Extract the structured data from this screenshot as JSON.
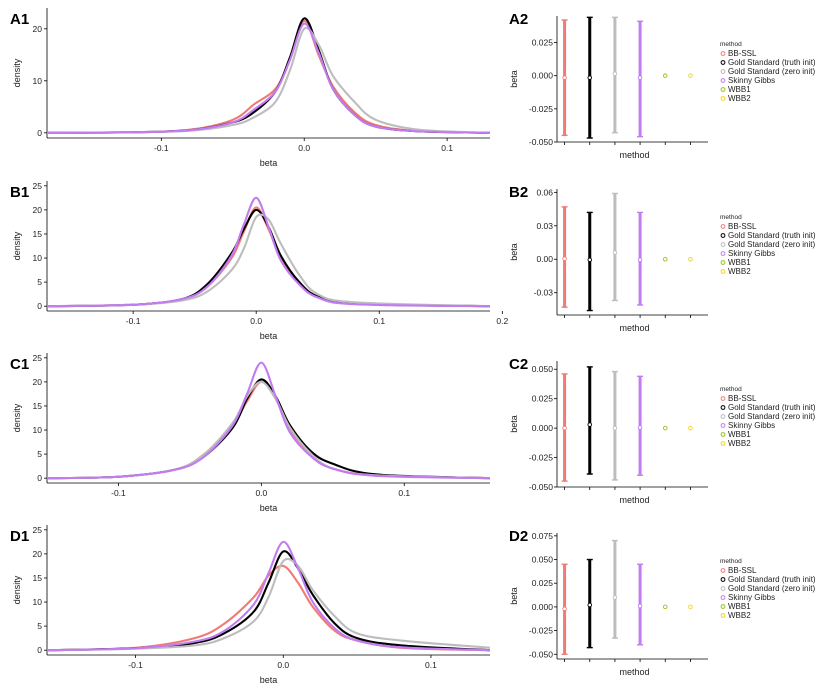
{
  "colors": {
    "BB-SSL": "#f07b74",
    "Gold Standard (truth init)": "#000000",
    "Gold Standard (zero init)": "#bdbdbd",
    "Skinny Gibbs": "#c27cf2",
    "WBB1": "#9bbf1f",
    "WBB2": "#f7d21c"
  },
  "legend": {
    "title": "method",
    "entries": [
      "BB-SSL",
      "Gold Standard (truth init)",
      "Gold Standard (zero init)",
      "Skinny Gibbs",
      "WBB1",
      "WBB2"
    ]
  },
  "chart_data": [
    {
      "label": "A1",
      "type": "line",
      "xlabel": "beta",
      "ylabel": "density",
      "xlim": [
        -0.18,
        0.13
      ],
      "ylim": [
        -1,
        24
      ],
      "xticks": [
        -0.1,
        0.0,
        0.1
      ],
      "xtick_labels": [
        "-0.1",
        "0.0",
        "0.1"
      ],
      "yticks": [
        0,
        10,
        20
      ],
      "ytick_labels": [
        "0",
        "10",
        "20"
      ],
      "series": [
        {
          "name": "BB-SSL",
          "x": [
            -0.18,
            -0.12,
            -0.08,
            -0.05,
            -0.035,
            -0.02,
            -0.01,
            0.0,
            0.01,
            0.02,
            0.035,
            0.05,
            0.08,
            0.13
          ],
          "y": [
            0,
            0.1,
            0.6,
            2.5,
            5.5,
            8.5,
            14.0,
            21.5,
            15.0,
            9.0,
            4.0,
            1.5,
            0.3,
            0
          ]
        },
        {
          "name": "Gold Standard (truth init)",
          "x": [
            -0.18,
            -0.12,
            -0.08,
            -0.05,
            -0.035,
            -0.02,
            -0.01,
            0.0,
            0.01,
            0.02,
            0.035,
            0.05,
            0.08,
            0.13
          ],
          "y": [
            0,
            0.1,
            0.5,
            2.0,
            4.0,
            8.0,
            14.5,
            22.0,
            16.0,
            8.5,
            3.5,
            1.2,
            0.3,
            0
          ]
        },
        {
          "name": "Gold Standard (zero init)",
          "x": [
            -0.18,
            -0.12,
            -0.08,
            -0.05,
            -0.035,
            -0.02,
            -0.01,
            0.0,
            0.01,
            0.02,
            0.035,
            0.05,
            0.08,
            0.13
          ],
          "y": [
            0,
            0.1,
            0.4,
            1.5,
            3.0,
            6.0,
            12.0,
            20.0,
            17.0,
            11.0,
            6.0,
            2.5,
            0.6,
            0
          ]
        },
        {
          "name": "Skinny Gibbs",
          "x": [
            -0.18,
            -0.12,
            -0.08,
            -0.05,
            -0.035,
            -0.02,
            -0.01,
            0.0,
            0.01,
            0.02,
            0.035,
            0.05,
            0.08,
            0.13
          ],
          "y": [
            0,
            0.1,
            0.5,
            2.0,
            4.5,
            8.0,
            14.0,
            21.0,
            15.5,
            8.5,
            3.5,
            1.2,
            0.3,
            0
          ]
        }
      ]
    },
    {
      "label": "A2",
      "type": "errorbar",
      "xlabel": "method",
      "ylabel": "beta",
      "ylim": [
        -0.05,
        0.045
      ],
      "yticks": [
        -0.05,
        -0.025,
        0.0,
        0.025
      ],
      "ytick_labels": [
        "-0.050",
        "-0.025",
        "0.000",
        "0.025"
      ],
      "categories": [
        "BB-SSL",
        "Gold Standard (truth init)",
        "Gold Standard (zero init)",
        "Skinny Gibbs",
        "WBB1",
        "WBB2"
      ],
      "mean": [
        -0.0015,
        -0.0015,
        0.0015,
        -0.0015,
        0.0,
        0.0
      ],
      "lower": [
        -0.045,
        -0.047,
        -0.043,
        -0.046,
        0.0,
        0.0
      ],
      "upper": [
        0.042,
        0.044,
        0.044,
        0.041,
        0.0,
        0.0
      ]
    },
    {
      "label": "B1",
      "type": "line",
      "xlabel": "beta",
      "ylabel": "density",
      "xlim": [
        -0.17,
        0.19
      ],
      "ylim": [
        -1,
        26
      ],
      "xticks": [
        -0.1,
        0.0,
        0.1,
        0.2
      ],
      "xtick_labels": [
        "-0.1",
        "0.0",
        "0.1",
        "0.2"
      ],
      "yticks": [
        0,
        5,
        10,
        15,
        20,
        25
      ],
      "ytick_labels": [
        "0",
        "5",
        "10",
        "15",
        "20",
        "25"
      ],
      "series": [
        {
          "name": "BB-SSL",
          "x": [
            -0.17,
            -0.1,
            -0.06,
            -0.04,
            -0.02,
            -0.01,
            0.0,
            0.01,
            0.02,
            0.035,
            0.05,
            0.08,
            0.19
          ],
          "y": [
            0,
            0.3,
            1.5,
            4.0,
            10.0,
            15.5,
            20.5,
            16.0,
            10.0,
            5.0,
            2.0,
            0.5,
            0
          ]
        },
        {
          "name": "Gold Standard (truth init)",
          "x": [
            -0.17,
            -0.1,
            -0.06,
            -0.04,
            -0.02,
            -0.01,
            0.0,
            0.01,
            0.02,
            0.035,
            0.05,
            0.08,
            0.19
          ],
          "y": [
            0,
            0.3,
            1.5,
            4.5,
            11.0,
            16.0,
            20.0,
            16.5,
            10.5,
            5.0,
            2.0,
            0.5,
            0
          ]
        },
        {
          "name": "Gold Standard (zero init)",
          "x": [
            -0.17,
            -0.1,
            -0.06,
            -0.04,
            -0.02,
            -0.01,
            0.0,
            0.01,
            0.02,
            0.035,
            0.05,
            0.08,
            0.19
          ],
          "y": [
            0,
            0.3,
            1.2,
            3.0,
            7.5,
            12.0,
            18.5,
            18.0,
            13.0,
            6.5,
            2.5,
            0.8,
            0
          ]
        },
        {
          "name": "Skinny Gibbs",
          "x": [
            -0.17,
            -0.1,
            -0.06,
            -0.04,
            -0.02,
            -0.01,
            0.0,
            0.01,
            0.02,
            0.035,
            0.05,
            0.08,
            0.19
          ],
          "y": [
            0,
            0.3,
            1.5,
            4.0,
            10.5,
            17.0,
            22.5,
            16.5,
            9.5,
            4.5,
            1.8,
            0.4,
            0
          ]
        }
      ]
    },
    {
      "label": "B2",
      "type": "errorbar",
      "xlabel": "method",
      "ylabel": "beta",
      "ylim": [
        -0.05,
        0.063
      ],
      "yticks": [
        -0.03,
        0.0,
        0.03,
        0.06
      ],
      "ytick_labels": [
        "-0.03",
        "0.00",
        "0.03",
        "0.06"
      ],
      "categories": [
        "BB-SSL",
        "Gold Standard (truth init)",
        "Gold Standard (zero init)",
        "Skinny Gibbs",
        "WBB1",
        "WBB2"
      ],
      "mean": [
        0.0005,
        -0.0005,
        0.006,
        -0.0005,
        0.0,
        0.0
      ],
      "lower": [
        -0.043,
        -0.046,
        -0.037,
        -0.041,
        0.0,
        0.0
      ],
      "upper": [
        0.047,
        0.042,
        0.059,
        0.042,
        0.0,
        0.0
      ]
    },
    {
      "label": "C1",
      "type": "line",
      "xlabel": "beta",
      "ylabel": "density",
      "xlim": [
        -0.15,
        0.16
      ],
      "ylim": [
        -1,
        26
      ],
      "xticks": [
        -0.1,
        0.0,
        0.1
      ],
      "xtick_labels": [
        "-0.1",
        "0.0",
        "0.1"
      ],
      "yticks": [
        0,
        5,
        10,
        15,
        20,
        25
      ],
      "ytick_labels": [
        "0",
        "5",
        "10",
        "15",
        "20",
        "25"
      ],
      "series": [
        {
          "name": "BB-SSL",
          "x": [
            -0.15,
            -0.1,
            -0.06,
            -0.04,
            -0.02,
            -0.01,
            0.0,
            0.01,
            0.02,
            0.035,
            0.05,
            0.08,
            0.16
          ],
          "y": [
            0,
            0.3,
            1.8,
            5.0,
            11.0,
            16.0,
            20.0,
            16.5,
            10.0,
            4.5,
            2.0,
            0.6,
            0
          ]
        },
        {
          "name": "Gold Standard (truth init)",
          "x": [
            -0.15,
            -0.1,
            -0.06,
            -0.04,
            -0.02,
            -0.01,
            0.0,
            0.01,
            0.02,
            0.035,
            0.05,
            0.08,
            0.16
          ],
          "y": [
            0,
            0.3,
            1.8,
            4.5,
            10.5,
            16.5,
            20.5,
            17.0,
            11.0,
            5.5,
            3.0,
            0.8,
            0
          ]
        },
        {
          "name": "Gold Standard (zero init)",
          "x": [
            -0.15,
            -0.1,
            -0.06,
            -0.04,
            -0.02,
            -0.01,
            0.0,
            0.01,
            0.02,
            0.035,
            0.05,
            0.08,
            0.16
          ],
          "y": [
            0,
            0.3,
            1.8,
            5.0,
            11.5,
            17.0,
            20.0,
            16.5,
            10.5,
            5.0,
            2.0,
            0.6,
            0
          ]
        },
        {
          "name": "Skinny Gibbs",
          "x": [
            -0.15,
            -0.1,
            -0.06,
            -0.04,
            -0.02,
            -0.01,
            0.0,
            0.01,
            0.02,
            0.035,
            0.05,
            0.08,
            0.16
          ],
          "y": [
            0,
            0.3,
            1.8,
            4.5,
            11.0,
            17.5,
            24.0,
            17.0,
            9.5,
            4.5,
            2.0,
            0.5,
            0
          ]
        }
      ]
    },
    {
      "label": "C2",
      "type": "errorbar",
      "xlabel": "method",
      "ylabel": "beta",
      "ylim": [
        -0.05,
        0.057
      ],
      "yticks": [
        -0.05,
        -0.025,
        0.0,
        0.025,
        0.05
      ],
      "ytick_labels": [
        "-0.050",
        "-0.025",
        "0.000",
        "0.025",
        "0.050"
      ],
      "categories": [
        "BB-SSL",
        "Gold Standard (truth init)",
        "Gold Standard (zero init)",
        "Skinny Gibbs",
        "WBB1",
        "WBB2"
      ],
      "mean": [
        0.0,
        0.003,
        0.0,
        0.0005,
        0.0,
        0.0
      ],
      "lower": [
        -0.045,
        -0.039,
        -0.044,
        -0.04,
        0.0,
        0.0
      ],
      "upper": [
        0.046,
        0.052,
        0.048,
        0.044,
        0.0,
        0.0
      ]
    },
    {
      "label": "D1",
      "type": "line",
      "xlabel": "beta",
      "ylabel": "density",
      "xlim": [
        -0.16,
        0.14
      ],
      "ylim": [
        -1,
        26
      ],
      "xticks": [
        -0.1,
        0.0,
        0.1
      ],
      "xtick_labels": [
        "-0.1",
        "0.0",
        "0.1"
      ],
      "yticks": [
        0,
        5,
        10,
        15,
        20,
        25
      ],
      "ytick_labels": [
        "0",
        "5",
        "10",
        "15",
        "20",
        "25"
      ],
      "series": [
        {
          "name": "BB-SSL",
          "x": [
            -0.16,
            -0.1,
            -0.06,
            -0.04,
            -0.02,
            -0.01,
            0.0,
            0.01,
            0.02,
            0.035,
            0.05,
            0.08,
            0.14
          ],
          "y": [
            0,
            0.5,
            2.5,
            5.5,
            11.0,
            15.5,
            17.5,
            14.0,
            9.0,
            4.0,
            2.0,
            0.5,
            0
          ]
        },
        {
          "name": "Gold Standard (truth init)",
          "x": [
            -0.16,
            -0.1,
            -0.06,
            -0.04,
            -0.02,
            -0.01,
            0.0,
            0.01,
            0.02,
            0.035,
            0.05,
            0.08,
            0.14
          ],
          "y": [
            0,
            0.4,
            1.5,
            3.5,
            8.0,
            14.0,
            20.5,
            17.0,
            11.5,
            5.5,
            2.5,
            1.0,
            0
          ]
        },
        {
          "name": "Gold Standard (zero init)",
          "x": [
            -0.16,
            -0.1,
            -0.06,
            -0.04,
            -0.02,
            -0.01,
            0.0,
            0.01,
            0.02,
            0.035,
            0.05,
            0.08,
            0.14
          ],
          "y": [
            0,
            0.3,
            1.0,
            2.5,
            6.0,
            11.0,
            18.5,
            17.5,
            12.5,
            7.0,
            3.5,
            2.0,
            0.5
          ]
        },
        {
          "name": "Skinny Gibbs",
          "x": [
            -0.16,
            -0.1,
            -0.06,
            -0.04,
            -0.02,
            -0.01,
            0.0,
            0.01,
            0.02,
            0.035,
            0.05,
            0.08,
            0.14
          ],
          "y": [
            0,
            0.4,
            1.8,
            4.0,
            9.5,
            16.0,
            22.5,
            17.0,
            10.0,
            4.5,
            2.0,
            0.6,
            0
          ]
        }
      ]
    },
    {
      "label": "D2",
      "type": "errorbar",
      "xlabel": "method",
      "ylabel": "beta",
      "ylim": [
        -0.055,
        0.078
      ],
      "yticks": [
        -0.05,
        -0.025,
        0.0,
        0.025,
        0.05,
        0.075
      ],
      "ytick_labels": [
        "-0.050",
        "-0.025",
        "0.000",
        "0.025",
        "0.050",
        "0.075"
      ],
      "categories": [
        "BB-SSL",
        "Gold Standard (truth init)",
        "Gold Standard (zero init)",
        "Skinny Gibbs",
        "WBB1",
        "WBB2"
      ],
      "mean": [
        -0.002,
        0.002,
        0.01,
        0.001,
        0.0,
        0.0
      ],
      "lower": [
        -0.05,
        -0.043,
        -0.033,
        -0.04,
        0.0,
        0.0
      ],
      "upper": [
        0.045,
        0.05,
        0.07,
        0.045,
        0.0,
        0.0
      ]
    }
  ]
}
